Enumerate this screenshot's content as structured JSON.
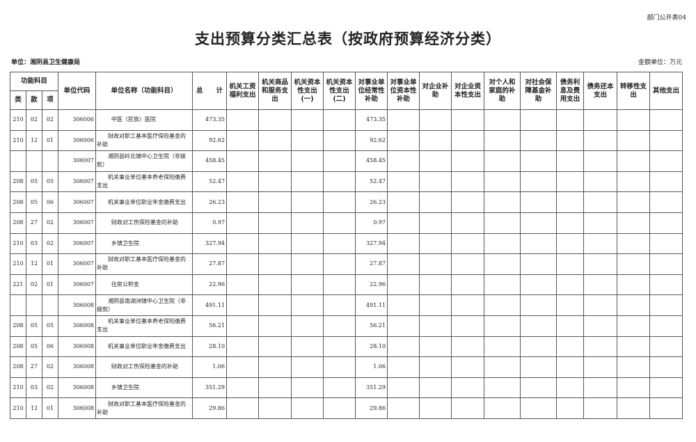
{
  "form_no": "部门公开表04",
  "title": "支出预算分类汇总表（按政府预算经济分类）",
  "unit_label": "单位：湘阴县卫生健康局",
  "amount_unit": "金额单位：万元",
  "header": {
    "func_subject": "功能科目",
    "lei": "类",
    "kuan": "款",
    "xiang": "项",
    "unit_code": "单位代码",
    "unit_name": "单位名称（功能科目）",
    "total": "总　　计",
    "cols": [
      "机关工资福利支出",
      "机关商品和服务支出",
      "机关资本性支出(一)",
      "机关资本性支出(二)",
      "对事业单位经常性补助",
      "对事业单位资本性补助",
      "对企业补助",
      "对企业资本性支出",
      "对个人和家庭的补助",
      "对社会保障基金补助",
      "债务利息及费用支出",
      "债务还本支出",
      "转移性支出",
      "其他支出"
    ]
  },
  "rows": [
    {
      "lei": "210",
      "kuan": "02",
      "xiang": "02",
      "code": "306006",
      "name": "中医（民族）医院",
      "total": "473.35",
      "values": [
        "",
        "",
        "",
        "",
        "473.35",
        "",
        "",
        "",
        "",
        "",
        "",
        "",
        "",
        ""
      ]
    },
    {
      "lei": "210",
      "kuan": "12",
      "xiang": "01",
      "code": "306006",
      "name": "财政对职工基本医疗保险基金的补助",
      "total": "92.62",
      "values": [
        "",
        "",
        "",
        "",
        "92.62",
        "",
        "",
        "",
        "",
        "",
        "",
        "",
        "",
        ""
      ]
    },
    {
      "lei": "",
      "kuan": "",
      "xiang": "",
      "code": "306007",
      "name": "湘阴县岭北镇中心卫生院（非拨款）",
      "total": "458.45",
      "values": [
        "",
        "",
        "",
        "",
        "458.45",
        "",
        "",
        "",
        "",
        "",
        "",
        "",
        "",
        ""
      ]
    },
    {
      "lei": "208",
      "kuan": "05",
      "xiang": "05",
      "code": "306007",
      "name": "机关事业单位基本养老保险缴费支出",
      "total": "52.47",
      "values": [
        "",
        "",
        "",
        "",
        "52.47",
        "",
        "",
        "",
        "",
        "",
        "",
        "",
        "",
        ""
      ]
    },
    {
      "lei": "208",
      "kuan": "05",
      "xiang": "06",
      "code": "306007",
      "name": "机关事业单位职业年金缴费支出",
      "total": "26.23",
      "values": [
        "",
        "",
        "",
        "",
        "26.23",
        "",
        "",
        "",
        "",
        "",
        "",
        "",
        "",
        ""
      ]
    },
    {
      "lei": "208",
      "kuan": "27",
      "xiang": "02",
      "code": "306007",
      "name": "财政对工伤保险基金的补助",
      "total": "0.97",
      "values": [
        "",
        "",
        "",
        "",
        "0.97",
        "",
        "",
        "",
        "",
        "",
        "",
        "",
        "",
        ""
      ]
    },
    {
      "lei": "210",
      "kuan": "03",
      "xiang": "02",
      "code": "306007",
      "name": "乡镇卫生院",
      "total": "327.94",
      "values": [
        "",
        "",
        "",
        "",
        "327.94",
        "",
        "",
        "",
        "",
        "",
        "",
        "",
        "",
        ""
      ]
    },
    {
      "lei": "210",
      "kuan": "12",
      "xiang": "01",
      "code": "306007",
      "name": "财政对职工基本医疗保险基金的补助",
      "total": "27.87",
      "values": [
        "",
        "",
        "",
        "",
        "27.87",
        "",
        "",
        "",
        "",
        "",
        "",
        "",
        "",
        ""
      ]
    },
    {
      "lei": "221",
      "kuan": "02",
      "xiang": "01",
      "code": "306007",
      "name": "住房公积金",
      "total": "22.96",
      "values": [
        "",
        "",
        "",
        "",
        "22.96",
        "",
        "",
        "",
        "",
        "",
        "",
        "",
        "",
        ""
      ]
    },
    {
      "lei": "",
      "kuan": "",
      "xiang": "",
      "code": "306008",
      "name": "湘阴县南湖洲镇中心卫生院（非拨款）",
      "total": "491.11",
      "values": [
        "",
        "",
        "",
        "",
        "491.11",
        "",
        "",
        "",
        "",
        "",
        "",
        "",
        "",
        ""
      ]
    },
    {
      "lei": "208",
      "kuan": "05",
      "xiang": "05",
      "code": "306008",
      "name": "机关事业单位基本养老保险缴费支出",
      "total": "56.21",
      "values": [
        "",
        "",
        "",
        "",
        "56.21",
        "",
        "",
        "",
        "",
        "",
        "",
        "",
        "",
        ""
      ]
    },
    {
      "lei": "208",
      "kuan": "05",
      "xiang": "06",
      "code": "306008",
      "name": "机关事业单位职业年金缴费支出",
      "total": "28.10",
      "values": [
        "",
        "",
        "",
        "",
        "28.10",
        "",
        "",
        "",
        "",
        "",
        "",
        "",
        "",
        ""
      ]
    },
    {
      "lei": "208",
      "kuan": "27",
      "xiang": "02",
      "code": "306008",
      "name": "财政对工伤保险基金的补助",
      "total": "1.06",
      "values": [
        "",
        "",
        "",
        "",
        "1.06",
        "",
        "",
        "",
        "",
        "",
        "",
        "",
        "",
        ""
      ]
    },
    {
      "lei": "210",
      "kuan": "03",
      "xiang": "02",
      "code": "306008",
      "name": "乡镇卫生院",
      "total": "351.29",
      "values": [
        "",
        "",
        "",
        "",
        "351.29",
        "",
        "",
        "",
        "",
        "",
        "",
        "",
        "",
        ""
      ]
    },
    {
      "lei": "210",
      "kuan": "12",
      "xiang": "01",
      "code": "306008",
      "name": "财政对职工基本医疗保险基金的补助",
      "total": "29.86",
      "values": [
        "",
        "",
        "",
        "",
        "29.86",
        "",
        "",
        "",
        "",
        "",
        "",
        "",
        "",
        ""
      ]
    }
  ]
}
